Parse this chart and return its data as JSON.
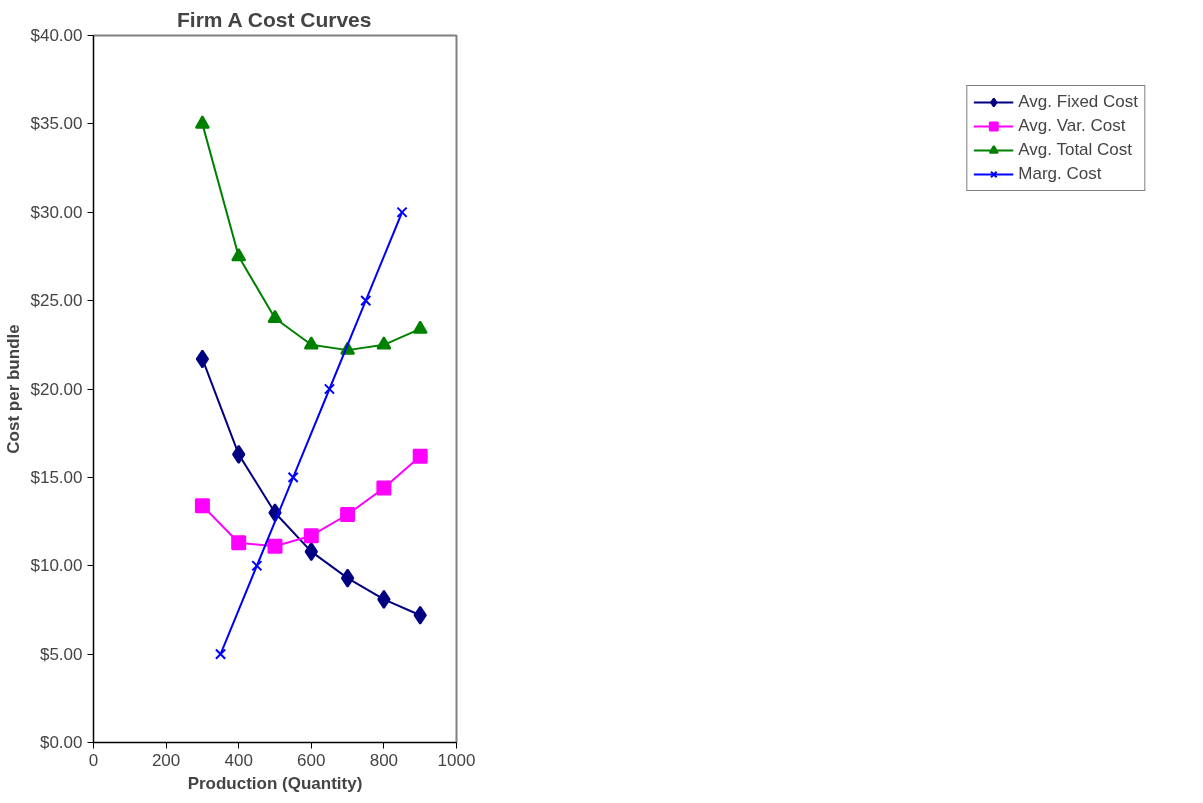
{
  "chart_data": {
    "type": "line",
    "title": "Firm A Cost Curves",
    "xlabel": "Production (Quantity)",
    "ylabel": "Cost per bundle",
    "xlim": [
      0,
      1000
    ],
    "xticks": [
      0,
      200,
      400,
      600,
      800,
      1000
    ],
    "ylim": [
      0,
      40
    ],
    "yticks": [
      {
        "value": 0,
        "label": "$0.00"
      },
      {
        "value": 5,
        "label": "$5.00"
      },
      {
        "value": 10,
        "label": "$10.00"
      },
      {
        "value": 15,
        "label": "$15.00"
      },
      {
        "value": 20,
        "label": "$20.00"
      },
      {
        "value": 25,
        "label": "$25.00"
      },
      {
        "value": 30,
        "label": "$30.00"
      },
      {
        "value": 35,
        "label": "$35.00"
      },
      {
        "value": 40,
        "label": "$40.00"
      }
    ],
    "legend": "right",
    "line_style": "solid",
    "series": [
      {
        "name": "Avg. Fixed Cost",
        "color": "#000080",
        "marker": "diamond",
        "x": [
          300,
          400,
          500,
          600,
          700,
          800,
          900
        ],
        "values": [
          21.7,
          16.3,
          13.0,
          10.8,
          9.3,
          8.1,
          7.2
        ]
      },
      {
        "name": "Avg. Var. Cost",
        "color": "#ff00ff",
        "marker": "square",
        "x": [
          300,
          400,
          500,
          600,
          700,
          800,
          900
        ],
        "values": [
          13.4,
          11.3,
          11.1,
          11.7,
          12.9,
          14.4,
          16.2
        ]
      },
      {
        "name": "Avg. Total Cost",
        "color": "#008000",
        "marker": "triangle",
        "x": [
          300,
          400,
          500,
          600,
          700,
          800,
          900
        ],
        "values": [
          35.0,
          27.5,
          24.0,
          22.5,
          22.2,
          22.5,
          23.4
        ]
      },
      {
        "name": "Marg. Cost",
        "color": "#0000ff",
        "marker": "cross",
        "x": [
          350,
          450,
          550,
          650,
          750,
          850
        ],
        "values": [
          5,
          10,
          15,
          20,
          25,
          30
        ]
      }
    ]
  }
}
